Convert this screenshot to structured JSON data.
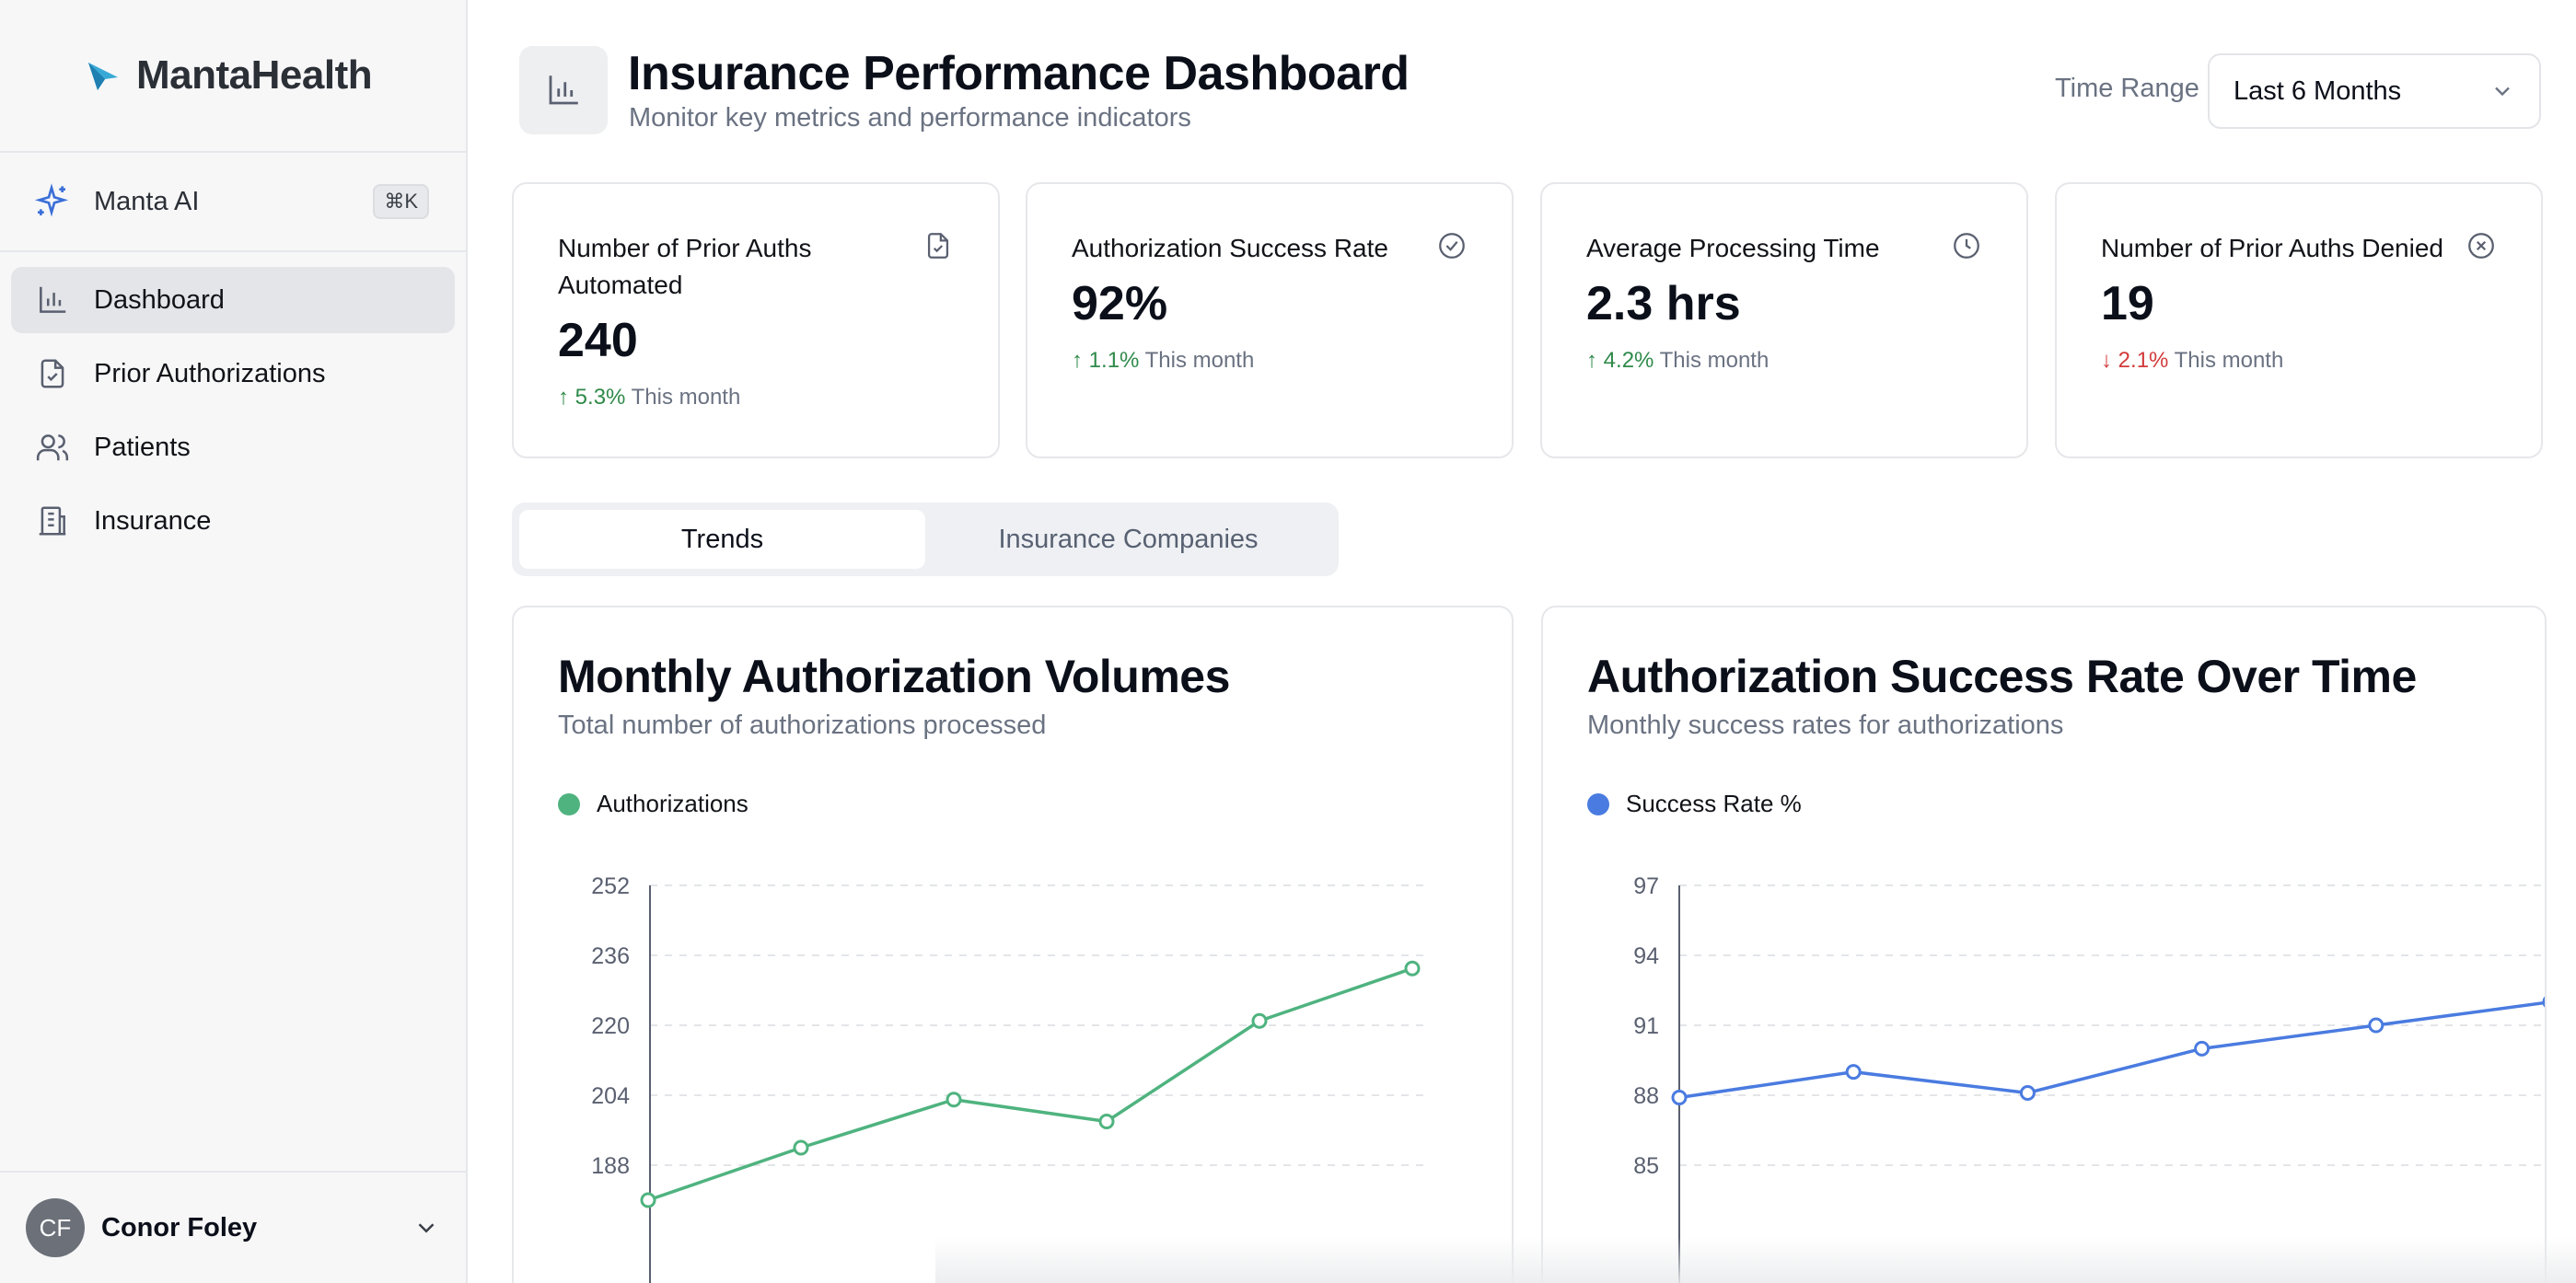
{
  "brand": {
    "name": "MantaHealth"
  },
  "sidebar": {
    "ai": {
      "label": "Manta AI",
      "shortcut": "⌘K"
    },
    "items": [
      {
        "label": "Dashboard",
        "icon": "bar-chart-icon",
        "active": true
      },
      {
        "label": "Prior Authorizations",
        "icon": "file-check-icon"
      },
      {
        "label": "Patients",
        "icon": "users-icon"
      },
      {
        "label": "Insurance",
        "icon": "building-icon"
      }
    ],
    "user": {
      "initials": "CF",
      "name": "Conor Foley"
    }
  },
  "header": {
    "title": "Insurance Performance Dashboard",
    "subtitle": "Monitor key metrics and performance indicators",
    "time_range_label": "Time Range",
    "time_range_value": "Last 6 Months"
  },
  "cards": [
    {
      "title": "Number of Prior Auths Automated",
      "value": "240",
      "delta": "5.3%",
      "direction": "up",
      "period": "This month",
      "icon": "file-check-icon"
    },
    {
      "title": "Authorization Success Rate",
      "value": "92%",
      "delta": "1.1%",
      "direction": "up",
      "period": "This month",
      "icon": "check-circle-icon"
    },
    {
      "title": "Average Processing Time",
      "value": "2.3 hrs",
      "delta": "4.2%",
      "direction": "up",
      "period": "This month",
      "icon": "clock-icon"
    },
    {
      "title": "Number of Prior Auths Denied",
      "value": "19",
      "delta": "2.1%",
      "direction": "down",
      "period": "This month",
      "icon": "x-circle-icon"
    }
  ],
  "tabs": [
    {
      "label": "Trends",
      "active": true
    },
    {
      "label": "Insurance Companies",
      "active": false
    }
  ],
  "colors": {
    "accent_green": "#4fb37f",
    "accent_blue": "#4a7be0",
    "positive": "#2f8a4a",
    "negative": "#d23a3a"
  },
  "chart_data": [
    {
      "type": "line",
      "title": "Monthly Authorization Volumes",
      "subtitle": "Total number of authorizations processed",
      "series": [
        {
          "name": "Authorizations",
          "color": "#4fb37f",
          "values": [
            180,
            192,
            203,
            198,
            221,
            233
          ]
        }
      ],
      "yticks": [
        252,
        236,
        220,
        204,
        188
      ],
      "ylim": [
        172,
        252
      ],
      "grid": true,
      "legend": "top-left"
    },
    {
      "type": "line",
      "title": "Authorization Success Rate Over Time",
      "subtitle": "Monthly success rates for authorizations",
      "series": [
        {
          "name": "Success Rate %",
          "color": "#4a7be0",
          "values": [
            87.9,
            89.0,
            88.1,
            90.0,
            91.0,
            92.0
          ]
        }
      ],
      "yticks": [
        97,
        94,
        91,
        88,
        85
      ],
      "ylim": [
        82,
        97
      ],
      "grid": true,
      "legend": "top-left"
    }
  ]
}
